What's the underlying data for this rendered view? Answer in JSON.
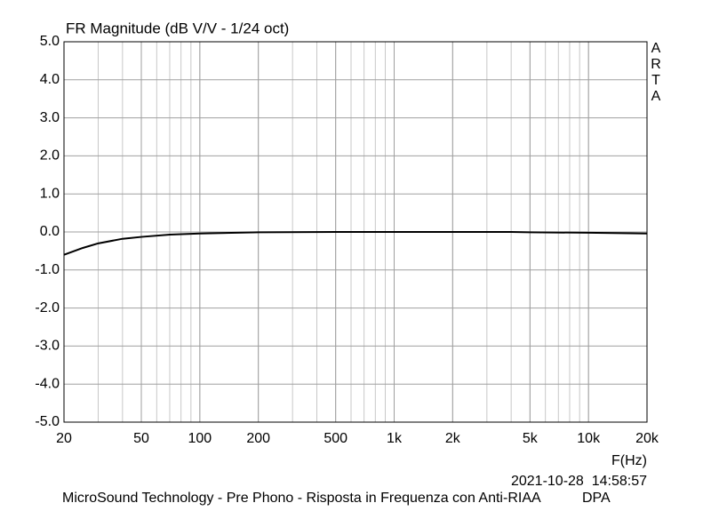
{
  "chart_data": {
    "type": "line",
    "title": "FR Magnitude (dB V/V - 1/24 oct)",
    "watermark": "ARTA",
    "x_label": "F(Hz)",
    "timestamp": "2021-10-28  14:58:57",
    "footer": "MicroSound Technology - Pre Phono - Risposta in Frequenza con Anti-RIAA",
    "footer_right": "DPA",
    "x_scale": "log",
    "grid": true,
    "xlim": [
      20,
      20000
    ],
    "ylim": [
      -5,
      5
    ],
    "xticks": [
      20,
      50,
      100,
      200,
      500,
      {
        "value": 1000,
        "label": "1k"
      },
      {
        "value": 2000,
        "label": "2k"
      },
      {
        "value": 5000,
        "label": "5k"
      },
      {
        "value": 10000,
        "label": "10k"
      },
      {
        "value": 20000,
        "label": "20k"
      }
    ],
    "yticks": [
      {
        "value": 5,
        "label": "5.0"
      },
      {
        "value": 4,
        "label": "4.0"
      },
      {
        "value": 3,
        "label": "3.0"
      },
      {
        "value": 2,
        "label": "2.0"
      },
      {
        "value": 1,
        "label": "1.0"
      },
      {
        "value": 0,
        "label": "0.0"
      },
      {
        "value": -1,
        "label": "-1.0"
      },
      {
        "value": -2,
        "label": "-2.0"
      },
      {
        "value": -3,
        "label": "-3.0"
      },
      {
        "value": -4,
        "label": "-4.0"
      },
      {
        "value": -5,
        "label": "-5.0"
      }
    ],
    "series": [
      {
        "color": "#000000",
        "x": [
          20,
          25,
          30,
          40,
          50,
          70,
          100,
          200,
          500,
          1000,
          2000,
          4000,
          5000,
          10000,
          20000
        ],
        "values": [
          -0.6,
          -0.42,
          -0.3,
          -0.18,
          -0.13,
          -0.07,
          -0.04,
          -0.01,
          0,
          0,
          0,
          0,
          -0.01,
          -0.02,
          -0.04
        ]
      }
    ]
  }
}
